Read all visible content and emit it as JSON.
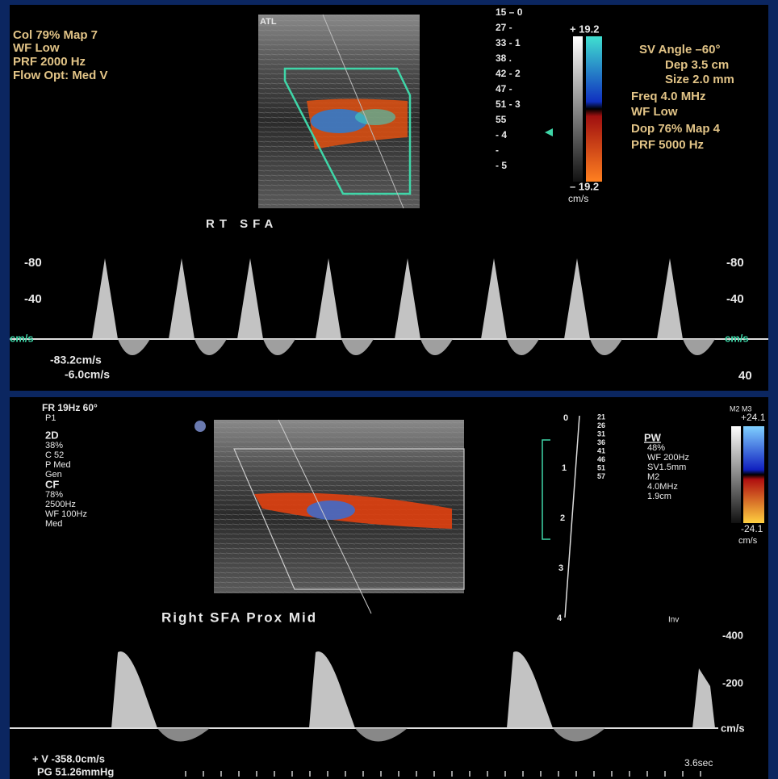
{
  "top": {
    "left": [
      "Col 79%  Map 7",
      "WF Low",
      "PRF 2000  Hz",
      "Flow Opt: Med V"
    ],
    "logo": "ATL",
    "depth": [
      "15 – 0",
      "27 -",
      "33 - 1",
      "38 .",
      "42 - 2",
      "47 -",
      "51 - 3",
      "55",
      "- 4",
      "-",
      "- 5"
    ],
    "colorbar": {
      "max": "+ 19.2",
      "min": "– 19.2",
      "unit": "cm/s"
    },
    "right": [
      "SV Angle –60°",
      "Dep 3.5  cm",
      "Size 2.0  mm",
      "Freq 4.0  MHz",
      "WF Low",
      "Dop 76%  Map 4",
      "PRF 5000  Hz"
    ],
    "label": "RT SFA",
    "axis_left": [
      "-80",
      "-40",
      "cm/s"
    ],
    "axis_right": [
      "-80",
      "-40",
      "cm/s",
      "40"
    ],
    "measurements": [
      "-83.2cm/s",
      "-6.0cm/s"
    ]
  },
  "bottom": {
    "left": [
      "FR 19Hz   60°",
      "P1",
      "2D",
      "38%",
      "C 52",
      "P Med",
      "Gen",
      "CF",
      "78%",
      "2500Hz",
      "WF 100Hz",
      "Med"
    ],
    "depth": [
      "0",
      "1",
      "2",
      "3",
      "4"
    ],
    "velocities": [
      "21",
      "26",
      "31",
      "36",
      "41",
      "46",
      "51",
      "57"
    ],
    "pw": [
      "PW",
      "48%",
      "WF 200Hz",
      "SV1.5mm",
      "M2",
      "4.0MHz",
      "1.9cm"
    ],
    "colorbar": {
      "mode": "M2 M3",
      "max": "+24.1",
      "min": "-24.1",
      "unit": "cm/s"
    },
    "label": "Right  SFA  Prox  Mid",
    "inv": "Inv",
    "axis": [
      "-400",
      "-200",
      "cm/s"
    ],
    "sweep": "3.6sec",
    "measurements": [
      "+ V -358.0cm/s",
      "PG 51.26mmHg"
    ]
  }
}
